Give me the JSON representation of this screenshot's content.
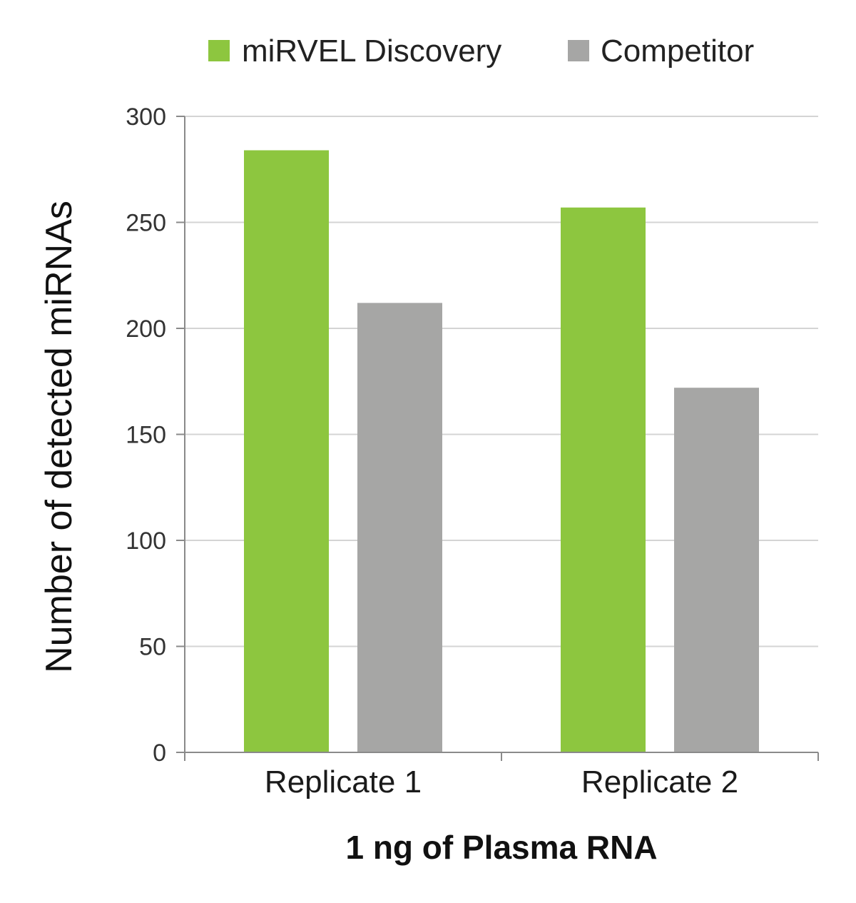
{
  "chart_data": {
    "type": "bar",
    "categories": [
      "Replicate 1",
      "Replicate 2"
    ],
    "series": [
      {
        "name": "miRVEL Discovery",
        "color": "#8dc63f",
        "values": [
          284,
          257
        ]
      },
      {
        "name": "Competitor",
        "color": "#a6a6a5",
        "values": [
          212,
          172
        ]
      }
    ],
    "xlabel": "1 ng of Plasma RNA",
    "ylabel": "Number of detected miRNAs",
    "ylim": [
      0,
      300
    ],
    "yticks": [
      0,
      50,
      100,
      150,
      200,
      250,
      300
    ],
    "grid": true,
    "legend": "top"
  }
}
